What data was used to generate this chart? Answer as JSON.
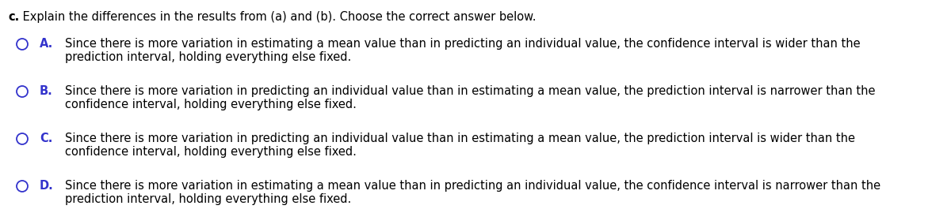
{
  "title_bold": "c.",
  "title_rest": " Explain the differences in the results from (a) and (b). Choose the correct answer below.",
  "options": [
    {
      "label": "A.",
      "text_line1": "Since there is more variation in estimating a mean value than in predicting an individual value, the confidence interval is wider than the",
      "text_line2": "prediction interval, holding everything else fixed."
    },
    {
      "label": "B.",
      "text_line1": "Since there is more variation in predicting an individual value than in estimating a mean value, the prediction interval is narrower than the",
      "text_line2": "confidence interval, holding everything else fixed."
    },
    {
      "label": "C.",
      "text_line1": "Since there is more variation in predicting an individual value than in estimating a mean value, the prediction interval is wider than the",
      "text_line2": "confidence interval, holding everything else fixed."
    },
    {
      "label": "D.",
      "text_line1": "Since there is more variation in estimating a mean value than in predicting an individual value, the confidence interval is narrower than the",
      "text_line2": "prediction interval, holding everything else fixed."
    }
  ],
  "title_color": "#000000",
  "option_label_color": "#3333CC",
  "option_text_color": "#000000",
  "circle_color": "#3333CC",
  "background_color": "#FFFFFF",
  "title_fontsize": 10.5,
  "option_fontsize": 10.5
}
